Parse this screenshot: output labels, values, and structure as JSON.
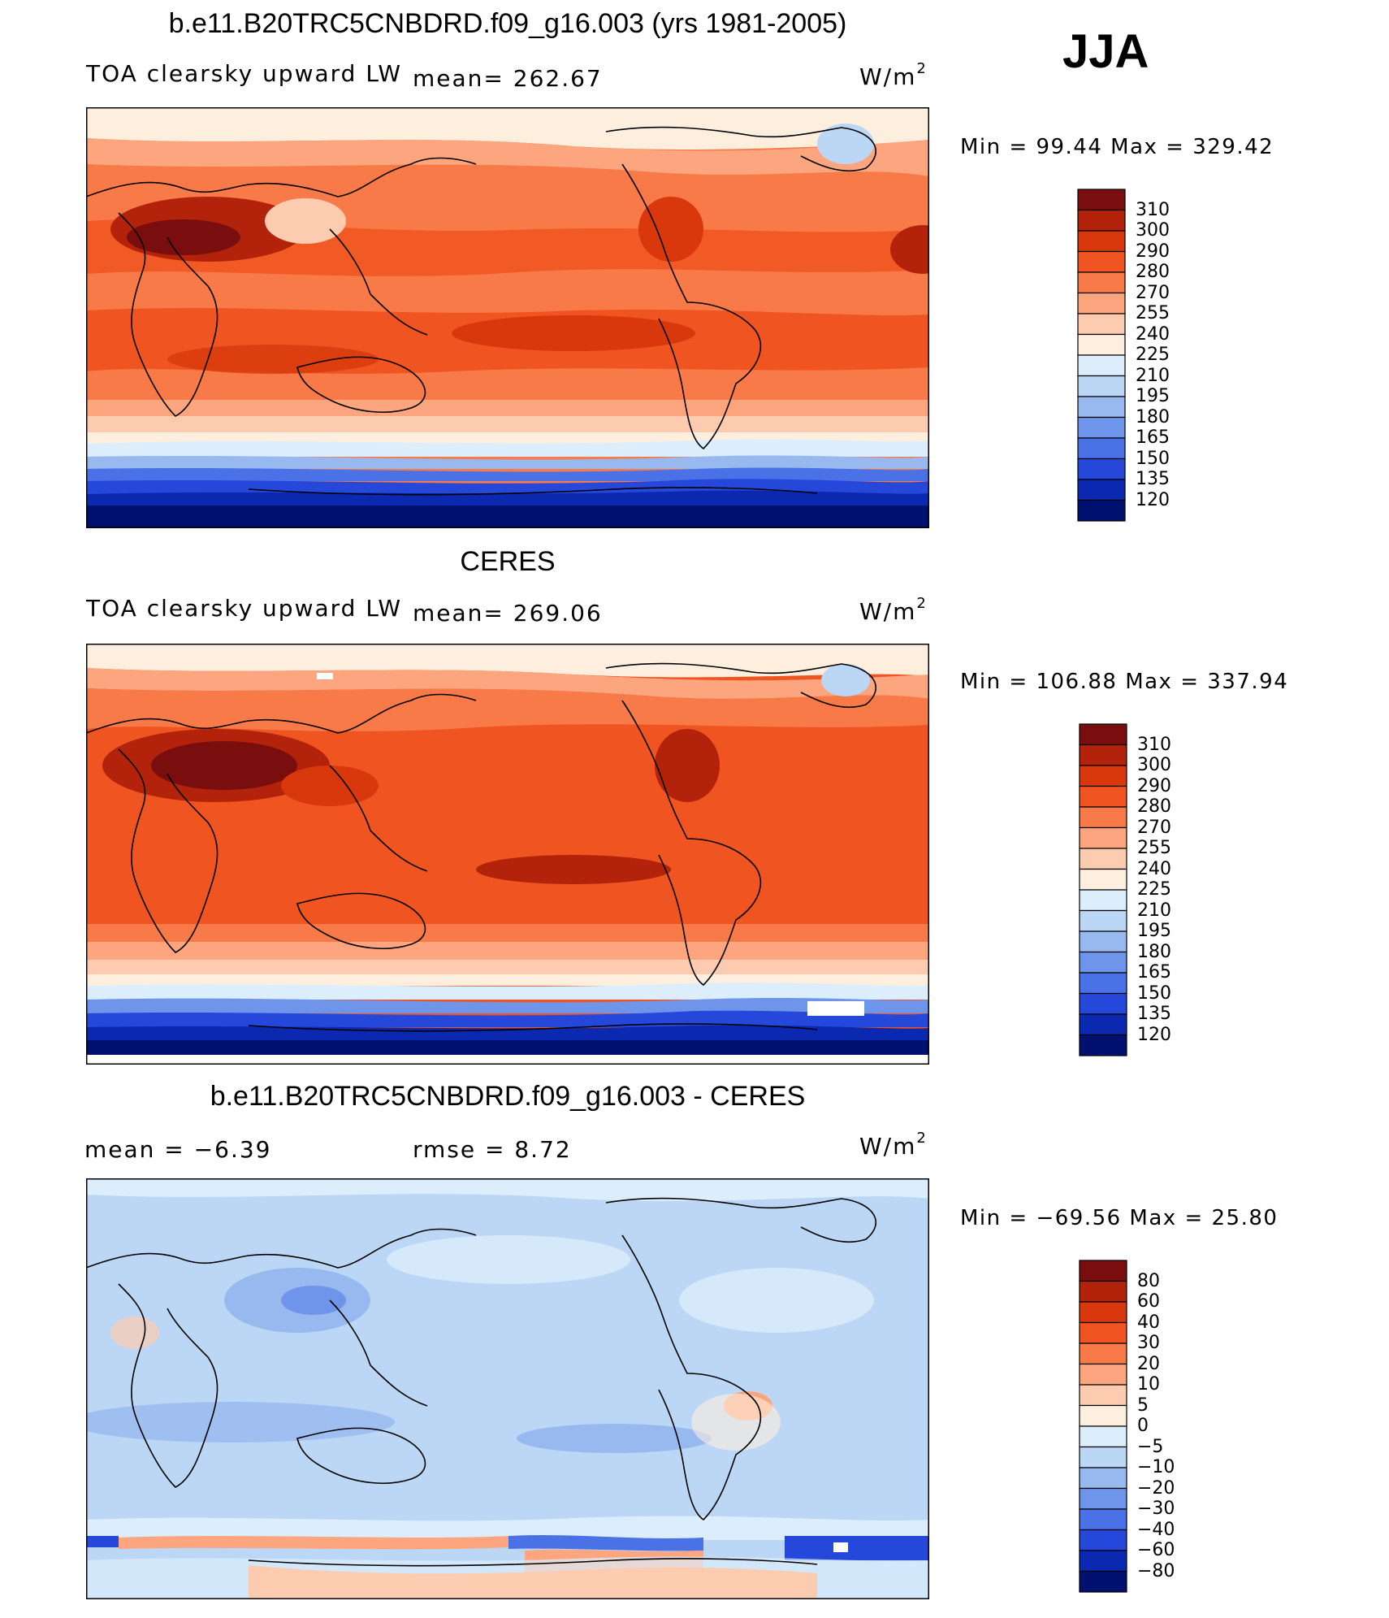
{
  "season": "JJA",
  "panels": [
    {
      "id": "model",
      "title": "b.e11.B20TRC5CNBDRD.f09_g16.003 (yrs 1981-2005)",
      "variable": "TOA clearsky upward LW",
      "stat1": "mean= 262.67",
      "stat2": "",
      "units": "W/m",
      "units_exp": "2",
      "minmax": "Min =   99.44 Max = 329.42",
      "colorbar": {
        "labels": [
          "310",
          "300",
          "290",
          "280",
          "270",
          "255",
          "240",
          "225",
          "210",
          "195",
          "180",
          "165",
          "150",
          "135",
          "120"
        ],
        "colors": [
          "#7a0d0d",
          "#b3220a",
          "#d8380c",
          "#f05420",
          "#f87a48",
          "#fca57f",
          "#fdccb0",
          "#fdeede",
          "#dceefb",
          "#bcd6f6",
          "#98b9f0",
          "#6e95ea",
          "#4a72e6",
          "#2547da",
          "#0a28b0",
          "#00106e"
        ]
      }
    },
    {
      "id": "obs",
      "title": "CERES",
      "variable": "TOA clearsky upward LW",
      "stat1": "mean= 269.06",
      "stat2": "",
      "units": "W/m",
      "units_exp": "2",
      "minmax": "Min = 106.88 Max = 337.94",
      "colorbar": {
        "labels": [
          "310",
          "300",
          "290",
          "280",
          "270",
          "255",
          "240",
          "225",
          "210",
          "195",
          "180",
          "165",
          "150",
          "135",
          "120"
        ],
        "colors": [
          "#7a0d0d",
          "#b3220a",
          "#d8380c",
          "#f05420",
          "#f87a48",
          "#fca57f",
          "#fdccb0",
          "#fdeede",
          "#dceefb",
          "#bcd6f6",
          "#98b9f0",
          "#6e95ea",
          "#4a72e6",
          "#2547da",
          "#0a28b0",
          "#00106e"
        ]
      }
    },
    {
      "id": "diff",
      "title": "b.e11.B20TRC5CNBDRD.f09_g16.003 - CERES",
      "variable": "",
      "stat1": "mean =   −6.39",
      "stat2": "rmse =    8.72",
      "units": "W/m",
      "units_exp": "2",
      "minmax": "Min = −69.56 Max =   25.80",
      "colorbar": {
        "labels": [
          "80",
          "60",
          "40",
          "30",
          "20",
          "10",
          "5",
          "0",
          "−5",
          "−10",
          "−20",
          "−30",
          "−40",
          "−60",
          "−80"
        ],
        "colors": [
          "#7a0d0d",
          "#b3220a",
          "#d8380c",
          "#f05420",
          "#f87a48",
          "#fca57f",
          "#fdccb0",
          "#fdeede",
          "#dceefb",
          "#bcd6f6",
          "#98b9f0",
          "#6e95ea",
          "#4a72e6",
          "#2547da",
          "#0a28b0",
          "#00106e"
        ]
      }
    }
  ]
}
